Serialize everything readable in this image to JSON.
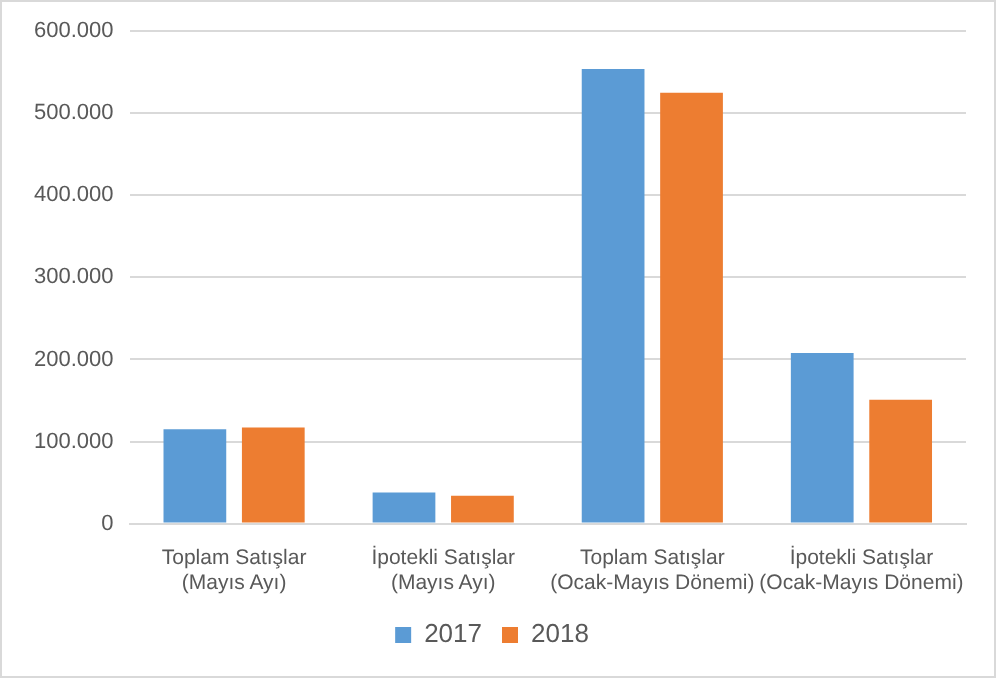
{
  "chart_data": {
    "type": "bar",
    "categories": [
      "Toplam Satışlar (Mayıs Ayı)",
      "İpotekli Satışlar (Mayıs Ayı)",
      "Toplam Satışlar (Ocak-Mayıs Dönemi)",
      "İpotekli Satışlar (Ocak-Mayıs Dönemi)"
    ],
    "series": [
      {
        "name": "2017",
        "color": "#5b9bd5",
        "values": [
          115000,
          38000,
          554000,
          208000
        ]
      },
      {
        "name": "2018",
        "color": "#ed7d31",
        "values": [
          117000,
          34000,
          525000,
          151000
        ]
      }
    ],
    "ylim": [
      0,
      600000
    ],
    "yticks": [
      {
        "value": 0,
        "label": "0"
      },
      {
        "value": 100000,
        "label": "100.000"
      },
      {
        "value": 200000,
        "label": "200.000"
      },
      {
        "value": 300000,
        "label": "300.000"
      },
      {
        "value": 400000,
        "label": "400.000"
      },
      {
        "value": 500000,
        "label": "500.000"
      },
      {
        "value": 600000,
        "label": "600.000"
      }
    ],
    "grid": "y",
    "legend": "bottom"
  }
}
